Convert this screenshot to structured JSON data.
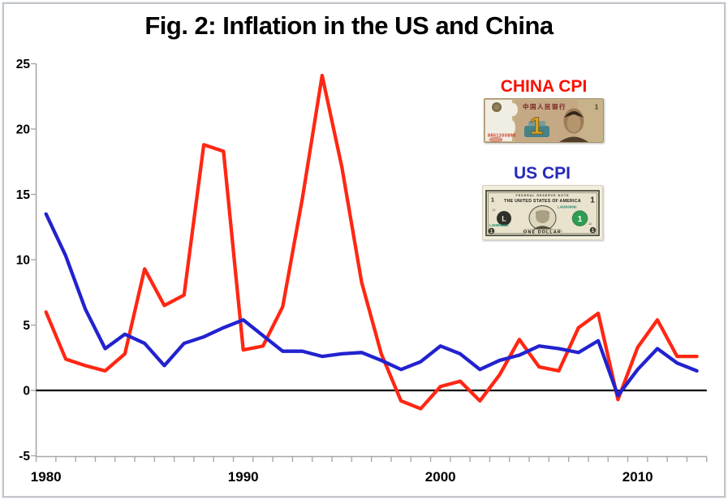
{
  "title": "Fig. 2: Inflation in the US and China",
  "frame": {
    "border_color": "#c3c7cd",
    "background": "#ffffff"
  },
  "legend": {
    "china_label": "CHINA CPI",
    "china_label_color": "#fb1000",
    "us_label": "US CPI",
    "us_label_color": "#2629bb"
  },
  "banknotes": {
    "yuan": {
      "name": "china-1-yuan-banknote",
      "bank_name": "中国人民银行",
      "denomination": "1",
      "serial": "8851200898"
    },
    "dollar": {
      "name": "us-1-dollar-banknote",
      "top_text": "FEDERAL RESERVE NOTE",
      "country": "THE UNITED STATES OF AMERICA",
      "denomination": "1",
      "serial": "L49560866I",
      "bank_letter": "L",
      "district_number": "12",
      "bottom_text": "ONE DOLLAR"
    }
  },
  "chart_data": {
    "type": "line",
    "title": "Fig. 2: Inflation in the US and China",
    "xlabel": "",
    "ylabel": "",
    "x": [
      1980,
      1981,
      1982,
      1983,
      1984,
      1985,
      1986,
      1987,
      1988,
      1989,
      1990,
      1991,
      1992,
      1993,
      1994,
      1995,
      1996,
      1997,
      1998,
      1999,
      2000,
      2001,
      2002,
      2003,
      2004,
      2005,
      2006,
      2007,
      2008,
      2009,
      2010,
      2011,
      2012,
      2013
    ],
    "series": [
      {
        "name": "CHINA CPI",
        "color": "#ff2713",
        "values": [
          6.0,
          2.4,
          1.9,
          1.5,
          2.8,
          9.3,
          6.5,
          7.3,
          18.8,
          18.3,
          3.1,
          3.4,
          6.4,
          14.7,
          24.1,
          17.1,
          8.3,
          2.8,
          -0.8,
          -1.4,
          0.3,
          0.7,
          -0.8,
          1.2,
          3.9,
          1.8,
          1.5,
          4.8,
          5.9,
          -0.7,
          3.3,
          5.4,
          2.6,
          2.6
        ]
      },
      {
        "name": "US CPI",
        "color": "#2222cf",
        "values": [
          13.5,
          10.3,
          6.2,
          3.2,
          4.3,
          3.6,
          1.9,
          3.6,
          4.1,
          4.8,
          5.4,
          4.2,
          3.0,
          3.0,
          2.6,
          2.8,
          2.9,
          2.3,
          1.6,
          2.2,
          3.4,
          2.8,
          1.6,
          2.3,
          2.7,
          3.4,
          3.2,
          2.9,
          3.8,
          -0.4,
          1.6,
          3.2,
          2.1,
          1.5
        ]
      }
    ],
    "ylim": [
      -5,
      25
    ],
    "yticks": [
      -5,
      0,
      5,
      10,
      15,
      20,
      25
    ],
    "xtick_labels": [
      1980,
      1990,
      2000,
      2010
    ],
    "grid": false,
    "zero_line": true,
    "axis_color": "#a8a8a8",
    "zero_line_color": "#000000",
    "legend_position": "inside-top-right"
  }
}
